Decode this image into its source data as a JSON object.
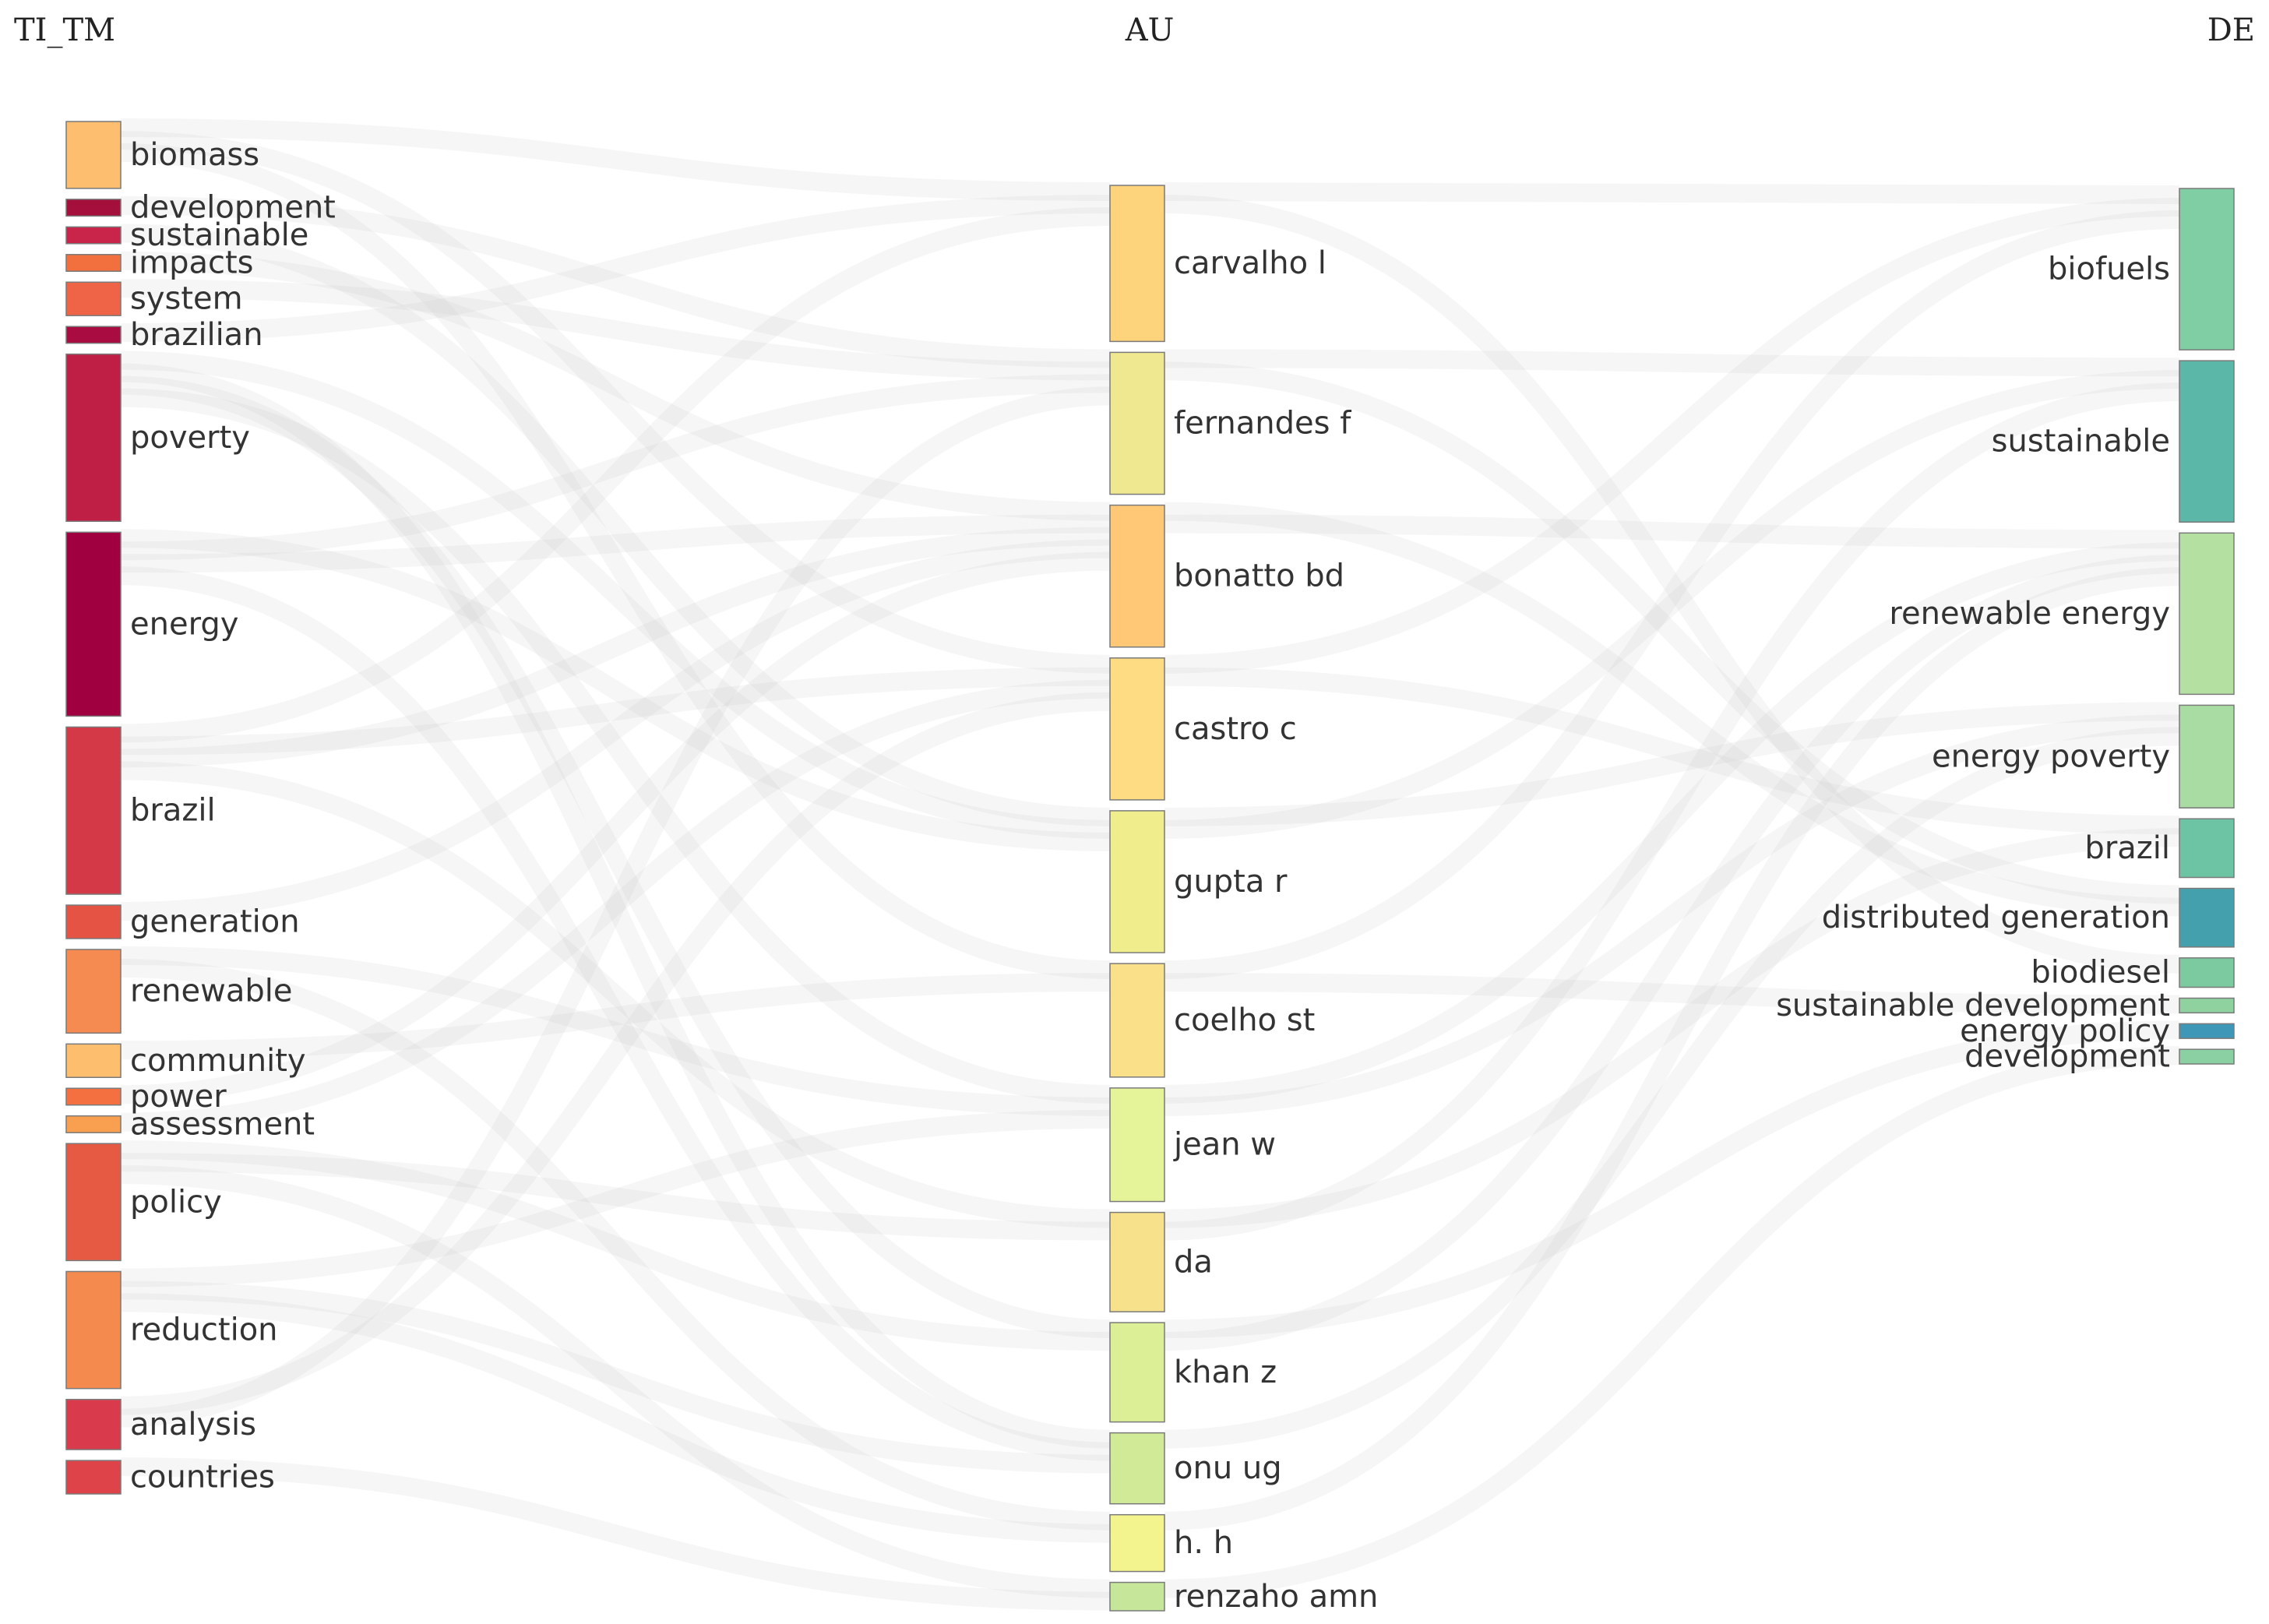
{
  "diagram": {
    "type": "sankey",
    "columns": [
      {
        "key": "TI_TM",
        "title": "TI_TM"
      },
      {
        "key": "AU",
        "title": "AU"
      },
      {
        "key": "DE",
        "title": "DE"
      }
    ],
    "nodes": {
      "TI_TM": [
        {
          "label": "biomass",
          "weight": 4,
          "color": "#fdbf6f"
        },
        {
          "label": "development",
          "weight": 1,
          "color": "#a50f3c"
        },
        {
          "label": "sustainable",
          "weight": 1,
          "color": "#c9254a"
        },
        {
          "label": "impacts",
          "weight": 1,
          "color": "#f1703e"
        },
        {
          "label": "system",
          "weight": 2,
          "color": "#ef6346"
        },
        {
          "label": "brazilian",
          "weight": 1,
          "color": "#a80c40"
        },
        {
          "label": "poverty",
          "weight": 10,
          "color": "#c01f45"
        },
        {
          "label": "energy",
          "weight": 11,
          "color": "#a10040"
        },
        {
          "label": "brazil",
          "weight": 10,
          "color": "#d43948"
        },
        {
          "label": "generation",
          "weight": 2,
          "color": "#e55344"
        },
        {
          "label": "renewable",
          "weight": 5,
          "color": "#f58b50"
        },
        {
          "label": "community",
          "weight": 2,
          "color": "#fdbe6d"
        },
        {
          "label": "power",
          "weight": 1,
          "color": "#f47040"
        },
        {
          "label": "assessment",
          "weight": 1,
          "color": "#f9a050"
        },
        {
          "label": "policy",
          "weight": 7,
          "color": "#e65a44"
        },
        {
          "label": "reduction",
          "weight": 7,
          "color": "#f58a4e"
        },
        {
          "label": "analysis",
          "weight": 3,
          "color": "#d93b4c"
        },
        {
          "label": "countries",
          "weight": 2,
          "color": "#de4349"
        }
      ],
      "AU": [
        {
          "label": "carvalho l",
          "weight": 11,
          "color": "#fdd47c"
        },
        {
          "label": "fernandes f",
          "weight": 10,
          "color": "#f0e890"
        },
        {
          "label": "bonatto bd",
          "weight": 10,
          "color": "#fec877"
        },
        {
          "label": "castro c",
          "weight": 10,
          "color": "#fedc83"
        },
        {
          "label": "gupta r",
          "weight": 10,
          "color": "#f0ee8c"
        },
        {
          "label": "coelho st",
          "weight": 8,
          "color": "#fbe08a"
        },
        {
          "label": "jean w",
          "weight": 8,
          "color": "#e6f499"
        },
        {
          "label": "da",
          "weight": 7,
          "color": "#f8e18b"
        },
        {
          "label": "khan z",
          "weight": 7,
          "color": "#dcef96"
        },
        {
          "label": "onu ug",
          "weight": 5,
          "color": "#d0ea98"
        },
        {
          "label": "h. h",
          "weight": 4,
          "color": "#f4f48f"
        },
        {
          "label": "renzaho amn",
          "weight": 2,
          "color": "#c6e79a"
        }
      ],
      "DE": [
        {
          "label": "biofuels",
          "weight": 11,
          "color": "#80cea4"
        },
        {
          "label": "sustainable",
          "weight": 11,
          "color": "#5bb8a8"
        },
        {
          "label": "renewable energy",
          "weight": 11,
          "color": "#b4e0a2"
        },
        {
          "label": "energy poverty",
          "weight": 7,
          "color": "#a9dca3"
        },
        {
          "label": "brazil",
          "weight": 4,
          "color": "#6cc4a4"
        },
        {
          "label": "distributed generation",
          "weight": 4,
          "color": "#44a0ad"
        },
        {
          "label": "biodiesel",
          "weight": 2,
          "color": "#7ccaa0"
        },
        {
          "label": "sustainable development",
          "weight": 1,
          "color": "#8fd19f"
        },
        {
          "label": "energy policy",
          "weight": 1,
          "color": "#3f97b8"
        },
        {
          "label": "development",
          "weight": 1,
          "color": "#8ad0a3"
        }
      ]
    },
    "links": [
      [
        "biomass",
        "carvalho l"
      ],
      [
        "biomass",
        "castro c"
      ],
      [
        "biomass",
        "coelho st"
      ],
      [
        "development",
        "fernandes f"
      ],
      [
        "sustainable",
        "gupta r"
      ],
      [
        "impacts",
        "bonatto bd"
      ],
      [
        "system",
        "fernandes f"
      ],
      [
        "brazilian",
        "carvalho l"
      ],
      [
        "poverty",
        "gupta r"
      ],
      [
        "poverty",
        "onu ug"
      ],
      [
        "poverty",
        "khan z"
      ],
      [
        "poverty",
        "jean w"
      ],
      [
        "energy",
        "gupta r"
      ],
      [
        "energy",
        "fernandes f"
      ],
      [
        "energy",
        "bonatto bd"
      ],
      [
        "energy",
        "onu ug"
      ],
      [
        "brazil",
        "carvalho l"
      ],
      [
        "brazil",
        "castro c"
      ],
      [
        "brazil",
        "bonatto bd"
      ],
      [
        "brazil",
        "da"
      ],
      [
        "generation",
        "bonatto bd"
      ],
      [
        "renewable",
        "jean w"
      ],
      [
        "renewable",
        "h. h"
      ],
      [
        "community",
        "coelho st"
      ],
      [
        "power",
        "bonatto bd"
      ],
      [
        "assessment",
        "castro c"
      ],
      [
        "policy",
        "khan z"
      ],
      [
        "policy",
        "da"
      ],
      [
        "policy",
        "renzaho amn"
      ],
      [
        "reduction",
        "jean w"
      ],
      [
        "reduction",
        "onu ug"
      ],
      [
        "reduction",
        "h. h"
      ],
      [
        "analysis",
        "castro c"
      ],
      [
        "analysis",
        "fernandes f"
      ],
      [
        "countries",
        "renzaho amn"
      ],
      [
        "carvalho l",
        "biofuels"
      ],
      [
        "carvalho l",
        "biodiesel"
      ],
      [
        "fernandes f",
        "sustainable"
      ],
      [
        "fernandes f",
        "distributed generation"
      ],
      [
        "bonatto bd",
        "distributed generation"
      ],
      [
        "bonatto bd",
        "renewable energy"
      ],
      [
        "castro c",
        "biofuels"
      ],
      [
        "castro c",
        "brazil"
      ],
      [
        "gupta r",
        "energy poverty"
      ],
      [
        "gupta r",
        "sustainable"
      ],
      [
        "coelho st",
        "biofuels"
      ],
      [
        "coelho st",
        "sustainable development"
      ],
      [
        "jean w",
        "renewable energy"
      ],
      [
        "jean w",
        "energy poverty"
      ],
      [
        "da",
        "brazil"
      ],
      [
        "da",
        "sustainable"
      ],
      [
        "khan z",
        "energy policy"
      ],
      [
        "khan z",
        "renewable energy"
      ],
      [
        "onu ug",
        "energy poverty"
      ],
      [
        "h. h",
        "renewable energy"
      ],
      [
        "renzaho amn",
        "development"
      ]
    ]
  }
}
